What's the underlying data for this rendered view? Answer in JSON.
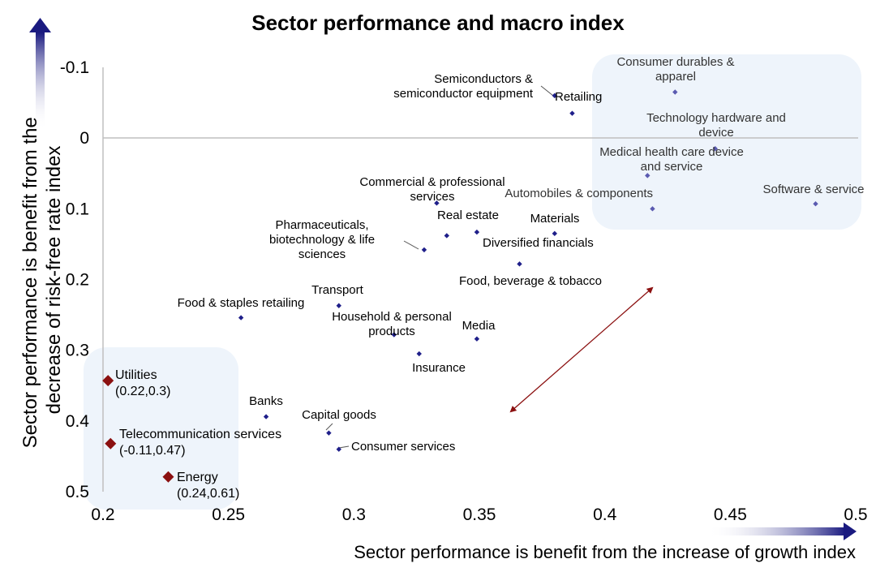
{
  "chart_data": {
    "type": "scatter",
    "title": "Sector performance and macro index",
    "xlabel": "Sector performance is benefit from the increase of growth index",
    "ylabel_lines": [
      "Sector performance is benefit from the",
      "decrease of risk-free rate index"
    ],
    "xlim": [
      0.2,
      0.5
    ],
    "ylim": [
      -0.1,
      0.5
    ],
    "y_inverted": true,
    "x_ticks": [
      "0.2",
      "0.25",
      "0.3",
      "0.35",
      "0.4",
      "0.45",
      "0.5"
    ],
    "y_ticks": [
      "-0.1",
      "0",
      "0.1",
      "0.2",
      "0.3",
      "0.4",
      "0.5"
    ],
    "grid": false,
    "colors": {
      "point": "#1f1f8a",
      "highlight": "#8b1010",
      "box": "#eef4fb",
      "arrow": "#2b2b7a"
    },
    "points": [
      {
        "name": "Semiconductors & semiconductor equipment",
        "label_lines": [
          "Semiconductors &",
          "semiconductor equipment"
        ],
        "x": 0.38,
        "y": -0.06
      },
      {
        "name": "Retailing",
        "label_lines": [
          "Retailing"
        ],
        "x": 0.387,
        "y": -0.035
      },
      {
        "name": "Consumer durables & apparel",
        "label_lines": [
          "Consumer durables &",
          "apparel"
        ],
        "x": 0.428,
        "y": -0.065
      },
      {
        "name": "Technology hardware and device",
        "label_lines": [
          "Technology hardware and",
          "device"
        ],
        "x": 0.444,
        "y": 0.015
      },
      {
        "name": "Medical health care device and service",
        "label_lines": [
          "Medical health care device",
          "and service"
        ],
        "x": 0.417,
        "y": 0.053
      },
      {
        "name": "Automobiles & components",
        "label_lines": [
          "Automobiles & components"
        ],
        "x": 0.419,
        "y": 0.1
      },
      {
        "name": "Software & service",
        "label_lines": [
          "Software & service"
        ],
        "x": 0.484,
        "y": 0.093
      },
      {
        "name": "Commercial & professional services",
        "label_lines": [
          "Commercial  & professional",
          "services"
        ],
        "x": 0.333,
        "y": 0.092
      },
      {
        "name": "Real estate",
        "label_lines": [
          "Real estate"
        ],
        "x": 0.337,
        "y": 0.138
      },
      {
        "name": "Materials",
        "label_lines": [
          "Materials"
        ],
        "x": 0.38,
        "y": 0.135
      },
      {
        "name": "Diversified financials",
        "label_lines": [
          "Diversified financials"
        ],
        "x": 0.349,
        "y": 0.133
      },
      {
        "name": "Pharmaceuticals, biotechnology & life sciences",
        "label_lines": [
          "Pharmaceuticals,",
          "biotechnology & life",
          "sciences"
        ],
        "x": 0.328,
        "y": 0.158
      },
      {
        "name": "Food, beverage & tobacco",
        "label_lines": [
          "Food, beverage & tobacco"
        ],
        "x": 0.366,
        "y": 0.178
      },
      {
        "name": "Food & staples retailing",
        "label_lines": [
          "Food & staples retailing"
        ],
        "x": 0.255,
        "y": 0.254
      },
      {
        "name": "Transport",
        "label_lines": [
          "Transport"
        ],
        "x": 0.294,
        "y": 0.237
      },
      {
        "name": "Household & personal products",
        "label_lines": [
          "Household & personal",
          "products"
        ],
        "x": 0.316,
        "y": 0.278
      },
      {
        "name": "Media",
        "label_lines": [
          "Media"
        ],
        "x": 0.349,
        "y": 0.284
      },
      {
        "name": "Insurance",
        "label_lines": [
          "Insurance"
        ],
        "x": 0.326,
        "y": 0.305
      },
      {
        "name": "Banks",
        "label_lines": [
          "Banks"
        ],
        "x": 0.265,
        "y": 0.394
      },
      {
        "name": "Capital goods",
        "label_lines": [
          "Capital goods"
        ],
        "x": 0.29,
        "y": 0.417
      },
      {
        "name": "Consumer services",
        "label_lines": [
          "Consumer services"
        ],
        "x": 0.294,
        "y": 0.44
      }
    ],
    "highlighted": [
      {
        "name": "Utilities",
        "coord": "(0.22,0.3)",
        "x": 0.202,
        "y": 0.343
      },
      {
        "name": "Telecommunication services",
        "coord": "(-0.11,0.47)",
        "x": 0.203,
        "y": 0.432
      },
      {
        "name": "Energy",
        "coord": "(0.24,0.61)",
        "x": 0.226,
        "y": 0.479
      }
    ]
  }
}
